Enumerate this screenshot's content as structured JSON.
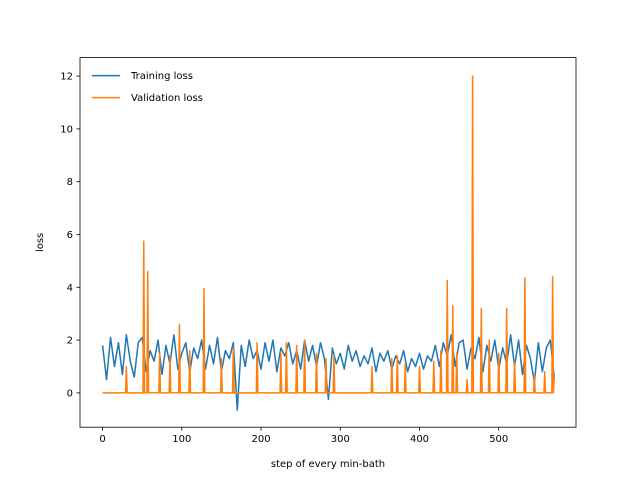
{
  "chart_data": {
    "type": "line",
    "xlabel": "step of every min-bath",
    "ylabel": "loss",
    "xlim": [
      -28.5,
      597.5
    ],
    "ylim": [
      -1.3,
      12.7
    ],
    "xticks": [
      0,
      100,
      200,
      300,
      400,
      500
    ],
    "yticks": [
      0,
      2,
      4,
      6,
      8,
      10,
      12
    ],
    "legend": "upper left",
    "series": [
      {
        "name": "Training loss",
        "color": "#1f77b4",
        "x": [
          0,
          5,
          10,
          15,
          20,
          25,
          30,
          35,
          40,
          45,
          50,
          55,
          60,
          65,
          70,
          75,
          80,
          85,
          90,
          95,
          100,
          105,
          110,
          115,
          120,
          125,
          130,
          135,
          140,
          145,
          150,
          155,
          160,
          165,
          170,
          175,
          180,
          185,
          190,
          195,
          200,
          205,
          210,
          215,
          220,
          225,
          230,
          235,
          240,
          245,
          250,
          255,
          260,
          265,
          270,
          275,
          280,
          285,
          290,
          295,
          300,
          305,
          310,
          315,
          320,
          325,
          330,
          335,
          340,
          345,
          350,
          355,
          360,
          365,
          370,
          375,
          380,
          385,
          390,
          395,
          400,
          405,
          410,
          415,
          420,
          425,
          430,
          435,
          440,
          445,
          450,
          455,
          460,
          465,
          470,
          475,
          480,
          485,
          490,
          495,
          500,
          505,
          510,
          515,
          520,
          525,
          530,
          535,
          540,
          545,
          550,
          555,
          560,
          565,
          570
        ],
        "values": [
          1.8,
          0.5,
          2.1,
          1.0,
          1.9,
          0.7,
          2.2,
          1.2,
          0.6,
          1.9,
          2.1,
          0.8,
          1.6,
          1.2,
          2.0,
          0.7,
          1.8,
          1.1,
          2.2,
          0.9,
          1.5,
          1.9,
          0.8,
          1.7,
          1.3,
          2.0,
          0.9,
          1.8,
          1.1,
          2.1,
          0.8,
          1.6,
          1.3,
          1.9,
          -0.65,
          1.8,
          1.0,
          2.0,
          1.3,
          1.6,
          0.9,
          1.9,
          1.2,
          2.0,
          0.8,
          1.7,
          1.4,
          1.9,
          1.1,
          1.6,
          0.9,
          2.0,
          1.2,
          1.8,
          1.0,
          1.9,
          1.3,
          -0.25,
          1.7,
          1.1,
          1.5,
          0.9,
          1.8,
          1.2,
          1.6,
          1.0,
          1.4,
          1.1,
          1.7,
          0.8,
          1.5,
          1.2,
          1.6,
          0.9,
          1.4,
          1.1,
          1.6,
          0.8,
          1.3,
          1.0,
          1.5,
          0.9,
          1.4,
          1.2,
          1.8,
          1.0,
          1.9,
          1.4,
          2.2,
          1.0,
          1.9,
          2.0,
          0.9,
          1.7,
          1.3,
          2.1,
          0.8,
          1.8,
          1.2,
          2.0,
          0.9,
          1.7,
          1.1,
          2.2,
          1.0,
          2.0,
          0.7,
          1.8,
          1.3,
          0.4,
          1.9,
          0.8,
          1.7,
          2.0,
          0.6
        ]
      },
      {
        "name": "Validation loss",
        "color": "#ff7f0e",
        "x": [
          0,
          29,
          30,
          31,
          51,
          52,
          53,
          56,
          57,
          58,
          71,
          72,
          73,
          84,
          85,
          86,
          96,
          97,
          98,
          109,
          110,
          111,
          127,
          128,
          129,
          149,
          150,
          151,
          164,
          165,
          166,
          194,
          195,
          196,
          224,
          225,
          226,
          231,
          232,
          233,
          244,
          245,
          246,
          254,
          255,
          256,
          269,
          270,
          271,
          281,
          282,
          283,
          291,
          292,
          293,
          339,
          340,
          341,
          364,
          365,
          366,
          371,
          372,
          373,
          381,
          382,
          383,
          399,
          400,
          401,
          417,
          418,
          419,
          426,
          427,
          428,
          434,
          435,
          436,
          441,
          442,
          443,
          446,
          447,
          448,
          459,
          460,
          461,
          466,
          467,
          468,
          477,
          478,
          479,
          487,
          488,
          489,
          499,
          500,
          501,
          509,
          510,
          511,
          519,
          520,
          521,
          532,
          533,
          534,
          544,
          545,
          546,
          557,
          558,
          559,
          567,
          568,
          569,
          570
        ],
        "values": [
          0,
          0,
          1.0,
          0,
          0,
          5.75,
          0,
          0,
          4.6,
          0,
          0,
          1.5,
          0,
          0,
          1.4,
          0,
          0,
          2.6,
          0,
          0,
          1.6,
          0,
          0,
          3.95,
          0,
          0,
          1.3,
          0,
          0,
          1.7,
          0,
          0,
          1.9,
          0,
          0,
          1.5,
          0,
          0,
          1.9,
          0,
          0,
          1.8,
          0,
          0,
          2.0,
          0,
          0,
          1.5,
          0,
          0,
          1.3,
          0,
          0,
          1.4,
          0,
          0,
          1.0,
          0,
          0,
          1.3,
          0,
          0,
          1.4,
          0,
          0,
          1.1,
          0,
          0,
          1.0,
          0,
          0,
          1.2,
          0,
          0,
          1.6,
          0,
          0,
          4.25,
          0,
          0,
          3.3,
          0,
          0,
          1.5,
          0,
          0,
          0.5,
          0,
          0,
          12.0,
          0,
          0,
          3.2,
          0,
          0,
          2.0,
          0,
          0,
          1.5,
          0,
          0,
          3.2,
          0,
          0,
          1.2,
          0,
          0,
          4.35,
          0,
          0,
          0.7,
          0,
          0,
          0.8,
          0,
          0,
          4.4,
          0,
          0.6
        ]
      }
    ]
  }
}
